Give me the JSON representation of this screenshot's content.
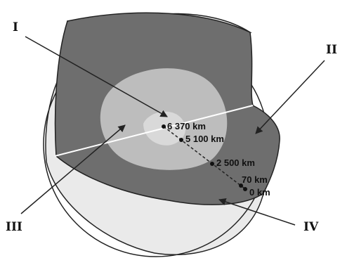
{
  "labels": {
    "I": "I",
    "II": "II",
    "III": "III",
    "IV": "IV"
  },
  "depths": [
    "6 370 km",
    "5 100 km",
    "2 500 km",
    "70 km",
    "0 km"
  ],
  "colors": {
    "outer_shell": "#eaeaea",
    "mantle": "#6e6e6e",
    "outer_core": "#bdbdbd",
    "inner_core": "#d9d9d9",
    "outline": "#222222"
  }
}
